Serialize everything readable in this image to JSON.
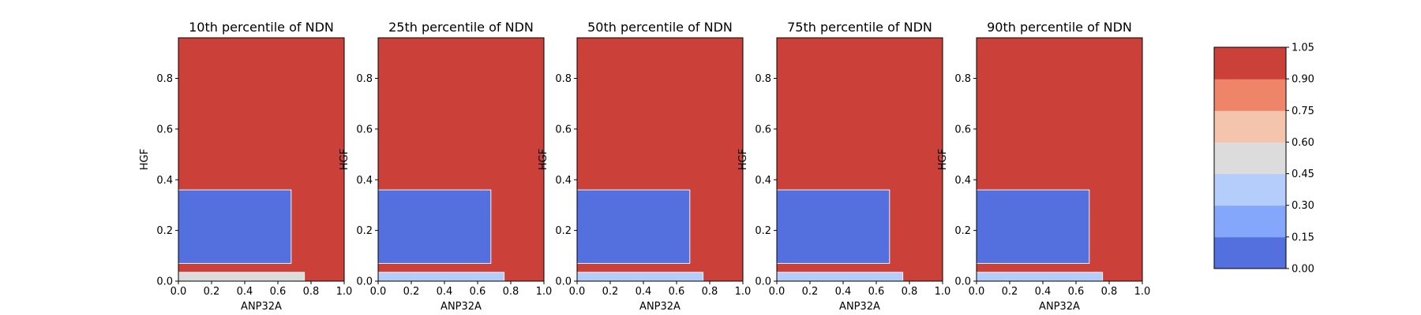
{
  "chart_data": {
    "type": "heatmap",
    "panels": [
      {
        "title": "10th percentile of NDN",
        "xlabel": "ANP32A",
        "ylabel": "HGF",
        "xlim": [
          0,
          1
        ],
        "ylim": [
          0,
          0.96
        ],
        "xticks": [
          "0.0",
          "0.2",
          "0.4",
          "0.6",
          "0.8",
          "1.0"
        ],
        "yticks": [
          "0.0",
          "0.2",
          "0.4",
          "0.6",
          "0.8"
        ],
        "regions": [
          {
            "x": [
              0,
              0.68
            ],
            "y": [
              0.07,
              0.36
            ],
            "level": 0
          },
          {
            "x": [
              0,
              0.76
            ],
            "y": [
              0.0,
              0.035
            ],
            "level": 3
          }
        ]
      },
      {
        "title": "25th percentile of NDN",
        "xlabel": "ANP32A",
        "ylabel": "HGF",
        "xlim": [
          0,
          1
        ],
        "ylim": [
          0,
          0.96
        ],
        "xticks": [
          "0.0",
          "0.2",
          "0.4",
          "0.6",
          "0.8",
          "1.0"
        ],
        "yticks": [
          "0.0",
          "0.2",
          "0.4",
          "0.6",
          "0.8"
        ],
        "regions": [
          {
            "x": [
              0,
              0.68
            ],
            "y": [
              0.07,
              0.36
            ],
            "level": 0
          },
          {
            "x": [
              0,
              0.76
            ],
            "y": [
              0.0,
              0.035
            ],
            "level": 2
          }
        ]
      },
      {
        "title": "50th percentile of NDN",
        "xlabel": "ANP32A",
        "ylabel": "HGF",
        "xlim": [
          0,
          1
        ],
        "ylim": [
          0,
          0.96
        ],
        "xticks": [
          "0.0",
          "0.2",
          "0.4",
          "0.6",
          "0.8",
          "1.0"
        ],
        "yticks": [
          "0.0",
          "0.2",
          "0.4",
          "0.6",
          "0.8"
        ],
        "regions": [
          {
            "x": [
              0,
              0.68
            ],
            "y": [
              0.07,
              0.36
            ],
            "level": 0
          },
          {
            "x": [
              0,
              0.76
            ],
            "y": [
              0.0,
              0.035
            ],
            "level": 2
          }
        ]
      },
      {
        "title": "75th percentile of NDN",
        "xlabel": "ANP32A",
        "ylabel": "HGF",
        "xlim": [
          0,
          1
        ],
        "ylim": [
          0,
          0.96
        ],
        "xticks": [
          "0.0",
          "0.2",
          "0.4",
          "0.6",
          "0.8",
          "1.0"
        ],
        "yticks": [
          "0.0",
          "0.2",
          "0.4",
          "0.6",
          "0.8"
        ],
        "regions": [
          {
            "x": [
              0,
              0.68
            ],
            "y": [
              0.07,
              0.36
            ],
            "level": 0
          },
          {
            "x": [
              0,
              0.76
            ],
            "y": [
              0.0,
              0.035
            ],
            "level": 2
          }
        ]
      },
      {
        "title": "90th percentile of NDN",
        "xlabel": "ANP32A",
        "ylabel": "HGF",
        "xlim": [
          0,
          1
        ],
        "ylim": [
          0,
          0.96
        ],
        "xticks": [
          "0.0",
          "0.2",
          "0.4",
          "0.6",
          "0.8",
          "1.0"
        ],
        "yticks": [
          "0.0",
          "0.2",
          "0.4",
          "0.6",
          "0.8"
        ],
        "regions": [
          {
            "x": [
              0,
              0.68
            ],
            "y": [
              0.07,
              0.36
            ],
            "level": 0
          },
          {
            "x": [
              0,
              0.76
            ],
            "y": [
              0.0,
              0.035
            ],
            "level": 2
          }
        ]
      }
    ],
    "background_level": 6,
    "colorbar": {
      "ticks": [
        "0.00",
        "0.15",
        "0.30",
        "0.45",
        "0.60",
        "0.75",
        "0.90",
        "1.05"
      ],
      "colors": [
        "#5470de",
        "#84a7fc",
        "#b5cdfa",
        "#dddcdc",
        "#f5c4ac",
        "#ee8468",
        "#cc403a"
      ]
    },
    "grid": false
  }
}
